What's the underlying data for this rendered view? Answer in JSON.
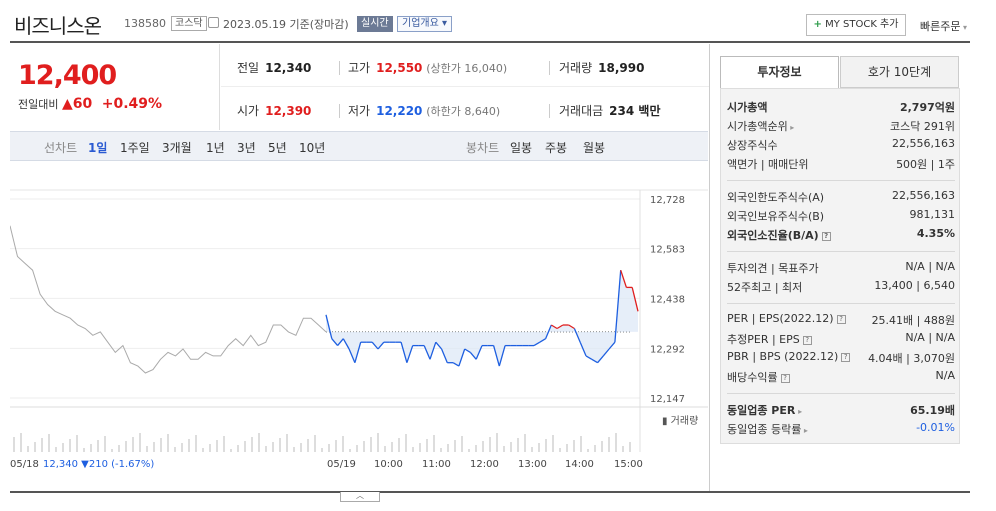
{
  "header": {
    "name": "비즈니스온",
    "code": "138580",
    "market": "코스닥",
    "date": "2023.05.19 기준(장마감)",
    "realtime": "실시간",
    "company_overview": "기업개요",
    "mystock": "MY STOCK 추가",
    "quick_order": "빠른주문"
  },
  "price": {
    "current": "12,400",
    "prev_label": "전일대비",
    "change": "60",
    "change_pct": "+0.49%"
  },
  "stats": {
    "prev_close_label": "전일",
    "prev_close": "12,340",
    "high_label": "고가",
    "high": "12,550",
    "upper_limit": "(상한가 16,040)",
    "volume_label": "거래량",
    "volume": "18,990",
    "open_label": "시가",
    "open": "12,390",
    "low_label": "저가",
    "low": "12,220",
    "lower_limit": "(하한가 8,640)",
    "amount_label": "거래대금",
    "amount": "234 백만"
  },
  "period_bar": {
    "line_label": "선차트",
    "line_periods": [
      "1일",
      "1주일",
      "3개월",
      "1년",
      "3년",
      "5년",
      "10년"
    ],
    "active": "1일",
    "candle_label": "봉차트",
    "candle_periods": [
      "일봉",
      "주봉",
      "월봉"
    ]
  },
  "chart_data": {
    "type": "line",
    "y_ticks": [
      "12,728",
      "12,583",
      "12,438",
      "12,292",
      "12,147"
    ],
    "ylim": [
      12147,
      12728
    ],
    "reference_price": 12340,
    "x_labels": [
      "05/18",
      "05/19",
      "10:00",
      "11:00",
      "12:00",
      "13:00",
      "14:00",
      "15:00"
    ],
    "prev_day_label": "05/18",
    "prev_day_close": "12,340",
    "prev_day_change": "▼210 (-1.67%)",
    "volume_label": "거래량",
    "prev_day_series": [
      12650,
      12560,
      12540,
      12520,
      12450,
      12420,
      12400,
      12390,
      12380,
      12360,
      12350,
      12330,
      12340,
      12310,
      12280,
      12300,
      12250,
      12240,
      12220,
      12230,
      12260,
      12280,
      12270,
      12290,
      12260,
      12260,
      12280,
      12270,
      12270,
      12300,
      12320,
      12300,
      12330,
      12300,
      12310,
      12360,
      12360,
      12340,
      12330,
      12380,
      12380,
      12360,
      12340
    ],
    "today_series": [
      12390,
      12320,
      12300,
      12320,
      12290,
      12250,
      12310,
      12310,
      12310,
      12290,
      12310,
      12310,
      12310,
      12310,
      12250,
      12300,
      12300,
      12300,
      12260,
      12310,
      12290,
      12250,
      12250,
      12240,
      12290,
      12280,
      12260,
      12300,
      12300,
      12300,
      12240,
      12300,
      12300,
      12300,
      12300,
      12300,
      12300,
      12310,
      12320,
      12360,
      12350,
      12360,
      12360,
      12350,
      12310,
      12270,
      12260,
      12250,
      12270,
      12290,
      12310,
      12520,
      12470,
      12470,
      12400
    ]
  },
  "right_panel": {
    "tab_active": "투자정보",
    "tab_inactive": "호가 10단계",
    "rows": [
      {
        "l": "시가총액",
        "r": "2,797억원"
      },
      {
        "l": "시가총액순위",
        "r": "코스닥 291위"
      },
      {
        "l": "상장주식수",
        "r": "22,556,163"
      },
      {
        "l": "액면가 | 매매단위",
        "r": "500원 | 1주"
      },
      {
        "l": "외국인한도주식수(A)",
        "r": "22,556,163"
      },
      {
        "l": "외국인보유주식수(B)",
        "r": "981,131"
      },
      {
        "l": "외국인소진율(B/A)",
        "r": "4.35%"
      },
      {
        "l": "투자의견 | 목표주가",
        "r": "N/A | N/A"
      },
      {
        "l": "52주최고 | 최저",
        "r": "13,400 | 6,540"
      },
      {
        "l": "PER | EPS(2022.12)",
        "r": "25.41배 | 488원"
      },
      {
        "l": "추정PER | EPS",
        "r": "N/A | N/A"
      },
      {
        "l": "PBR | BPS (2022.12)",
        "r": "4.04배 | 3,070원"
      },
      {
        "l": "배당수익률",
        "r": "N/A"
      },
      {
        "l": "동일업종 PER",
        "r": "65.19배"
      },
      {
        "l": "동일업종 등락률",
        "r": "-0.01%"
      }
    ]
  },
  "colors": {
    "up": "#e01e1e",
    "down": "#1e5fe0",
    "prev_line": "#aaaaaa"
  }
}
